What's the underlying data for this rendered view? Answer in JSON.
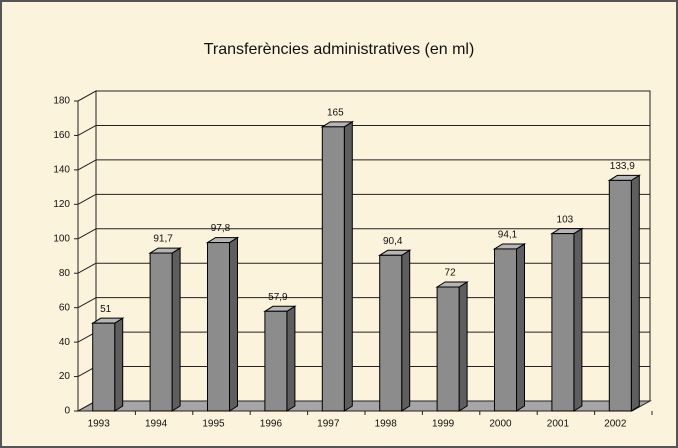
{
  "chart_data": {
    "type": "bar",
    "title": "Transferències administratives (en ml)",
    "categories": [
      "1993",
      "1994",
      "1995",
      "1996",
      "1997",
      "1998",
      "1999",
      "2000",
      "2001",
      "2002"
    ],
    "values": [
      51,
      91.7,
      97.8,
      57.9,
      165,
      90.4,
      72,
      94.1,
      103,
      133.9
    ],
    "value_labels": [
      "51",
      "91,7",
      "97,8",
      "57,9",
      "165",
      "90,4",
      "72",
      "94,1",
      "103",
      "133,9"
    ],
    "color": "#8c8c8c",
    "ylim": [
      0,
      180
    ],
    "yticks": [
      0,
      20,
      40,
      60,
      80,
      100,
      120,
      140,
      160,
      180
    ],
    "grid": true
  }
}
